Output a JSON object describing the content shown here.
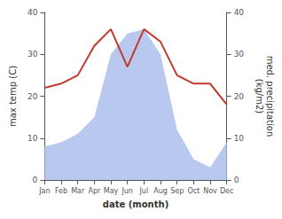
{
  "chart_data": {
    "type": "line",
    "categories": [
      "Jan",
      "Feb",
      "Mar",
      "Apr",
      "May",
      "Jun",
      "Jul",
      "Aug",
      "Sep",
      "Oct",
      "Nov",
      "Dec"
    ],
    "series": [
      {
        "type": "area",
        "color": "#b8c8ee",
        "values": [
          8,
          9,
          11,
          15,
          30,
          35,
          36,
          30,
          12,
          5,
          3,
          9
        ],
        "axis": "y2"
      },
      {
        "type": "line",
        "color": "#c0392b",
        "values": [
          22,
          23,
          25,
          32,
          36,
          27,
          36,
          33,
          25,
          23,
          23,
          18
        ]
      }
    ],
    "xlabel": "date (month)",
    "ylabel": "max temp (C)",
    "y2label": "med. precipitation\n(kg/m2)",
    "ylim": [
      0,
      40
    ],
    "yticks": [
      0,
      10,
      20,
      30,
      40
    ],
    "y2lim": [
      0,
      40
    ],
    "y2ticks": [
      0,
      10,
      20,
      30,
      40
    ],
    "grid": false
  }
}
